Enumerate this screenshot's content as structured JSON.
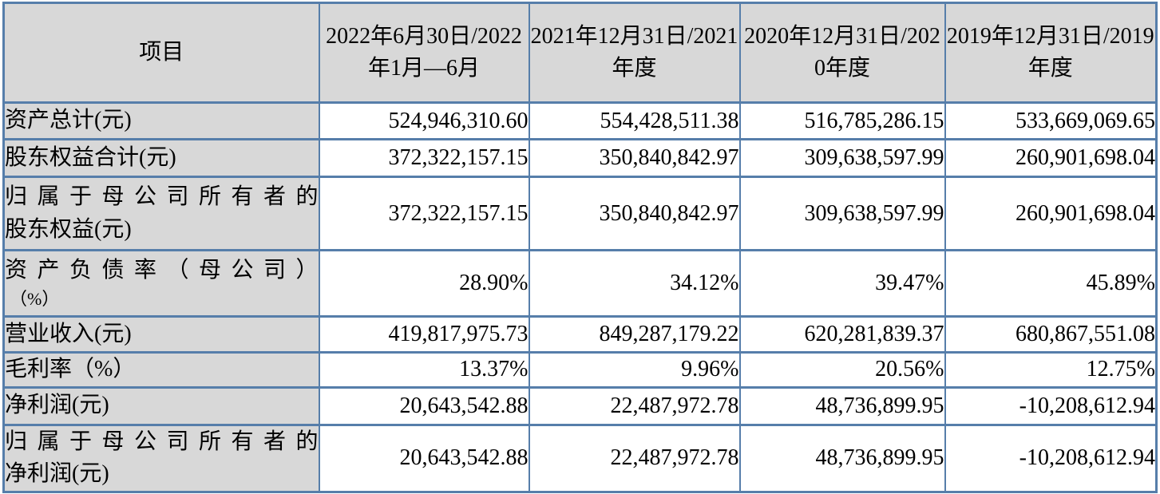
{
  "colors": {
    "border": "#567EAA",
    "shaded_cell_bg": "#D8D8D8",
    "text": "#000000"
  },
  "table": {
    "header": {
      "item_col": "项目",
      "period_cols": [
        "2022年6月30日/2022年1月—6月",
        "2021年12月31日/2021年度",
        "2020年12月31日/2020年度",
        "2019年12月31日/2019年度"
      ]
    },
    "rows": [
      {
        "label": "资产总计(元)",
        "values": [
          "524,946,310.60",
          "554,428,511.38",
          "516,785,286.15",
          "533,669,069.65"
        ]
      },
      {
        "label": "股东权益合计(元)",
        "values": [
          "372,322,157.15",
          "350,840,842.97",
          "309,638,597.99",
          "260,901,698.04"
        ]
      },
      {
        "label_line1": "归属于母公司所有者的",
        "label_line2": "股东权益(元)",
        "values": [
          "372,322,157.15",
          "350,840,842.97",
          "309,638,597.99",
          "260,901,698.04"
        ]
      },
      {
        "label_line1": "资产负债率（母公司）",
        "label_line2": "（%）",
        "values": [
          "28.90%",
          "34.12%",
          "39.47%",
          "45.89%"
        ]
      },
      {
        "label": "营业收入(元)",
        "values": [
          "419,817,975.73",
          "849,287,179.22",
          "620,281,839.37",
          "680,867,551.08"
        ]
      },
      {
        "label": "毛利率（%）",
        "values": [
          "13.37%",
          "9.96%",
          "20.56%",
          "12.75%"
        ]
      },
      {
        "label": "净利润(元)",
        "values": [
          "20,643,542.88",
          "22,487,972.78",
          "48,736,899.95",
          "-10,208,612.94"
        ]
      },
      {
        "label_line1": "归属于母公司所有者的",
        "label_line2": "净利润(元)",
        "values": [
          "20,643,542.88",
          "22,487,972.78",
          "48,736,899.95",
          "-10,208,612.94"
        ]
      }
    ]
  }
}
